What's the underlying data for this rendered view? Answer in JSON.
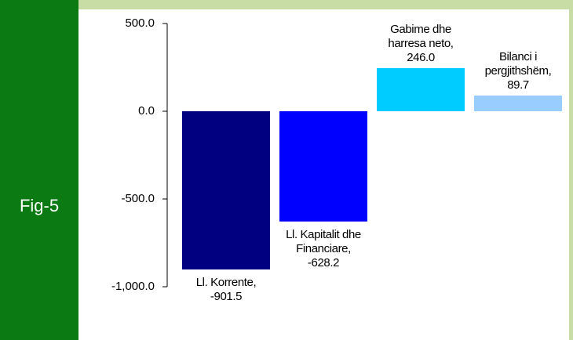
{
  "figure_label": "Fig-5",
  "chart_data": {
    "type": "bar",
    "values": [
      -901.5,
      -628.2,
      246.0,
      89.7
    ],
    "value_labels": [
      "Ll. Korrente, -901.5",
      "Ll. Kapitalit dhe Financiare, -628.2",
      "Gabime dhe harresa neto, 246.0",
      "Bilanci i pergjithshëm, 89.7"
    ],
    "colors": [
      "#000080",
      "#0000ff",
      "#00ccff",
      "#99ccff"
    ],
    "ylim": [
      -1000,
      500
    ],
    "yticks": [
      {
        "value": 500,
        "label": "500.0"
      },
      {
        "value": 0,
        "label": "0.0"
      },
      {
        "value": -500,
        "label": "-500.0"
      },
      {
        "value": -1000,
        "label": "-1,000.0"
      }
    ]
  }
}
